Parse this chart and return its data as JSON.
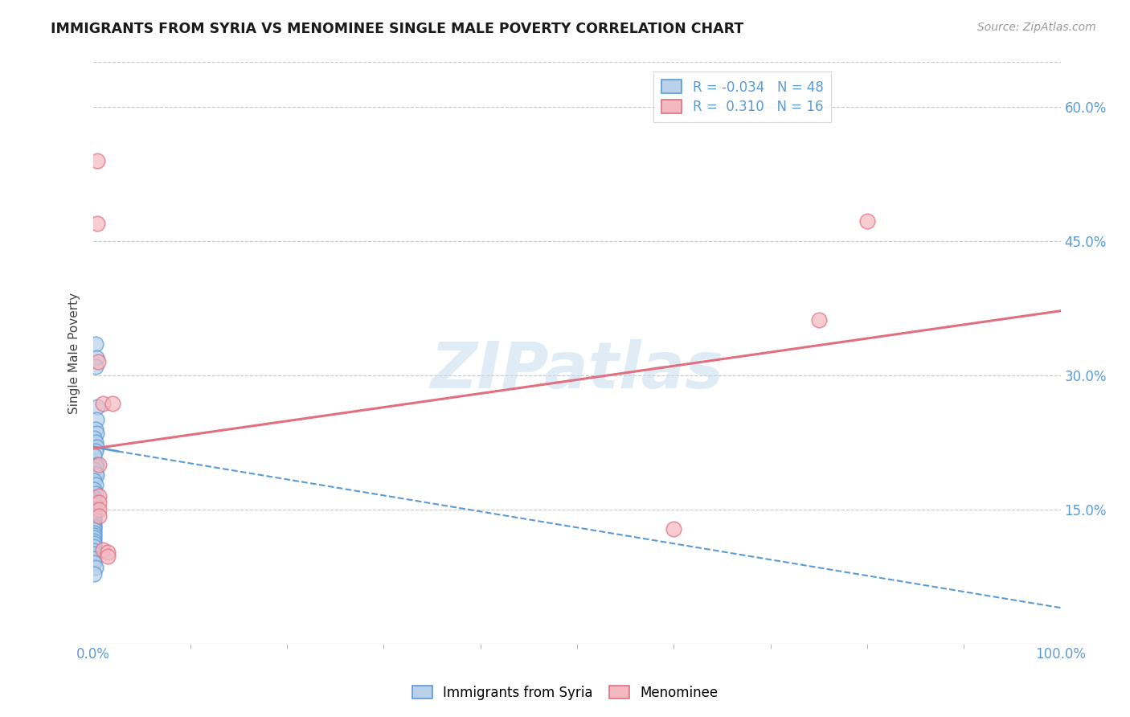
{
  "title": "IMMIGRANTS FROM SYRIA VS MENOMINEE SINGLE MALE POVERTY CORRELATION CHART",
  "source": "Source: ZipAtlas.com",
  "ylabel": "Single Male Poverty",
  "xlim": [
    0,
    1.0
  ],
  "ylim": [
    0,
    0.65
  ],
  "yticks": [
    0.15,
    0.3,
    0.45,
    0.6
  ],
  "ytick_labels": [
    "15.0%",
    "30.0%",
    "45.0%",
    "60.0%"
  ],
  "xtick_left": "0.0%",
  "xtick_right": "100.0%",
  "legend_items": [
    {
      "face_color": "#b8d0ea",
      "edge_color": "#5b9bd5",
      "R": "-0.034",
      "N": "48"
    },
    {
      "face_color": "#f4b8c0",
      "edge_color": "#e07080",
      "R": " 0.310",
      "N": "16"
    }
  ],
  "legend_labels": [
    "Immigrants from Syria",
    "Menominee"
  ],
  "watermark": "ZIPatlas",
  "blue_color": "#5b9bd5",
  "pink_color": "#e07080",
  "axis_color": "#5b9bd5",
  "blue_dots": [
    [
      0.002,
      0.335
    ],
    [
      0.003,
      0.32
    ],
    [
      0.002,
      0.31
    ],
    [
      0.004,
      0.265
    ],
    [
      0.003,
      0.25
    ],
    [
      0.002,
      0.24
    ],
    [
      0.003,
      0.235
    ],
    [
      0.001,
      0.23
    ],
    [
      0.002,
      0.225
    ],
    [
      0.003,
      0.22
    ],
    [
      0.002,
      0.215
    ],
    [
      0.001,
      0.21
    ],
    [
      0.003,
      0.2
    ],
    [
      0.002,
      0.198
    ],
    [
      0.001,
      0.195
    ],
    [
      0.002,
      0.19
    ],
    [
      0.003,
      0.188
    ],
    [
      0.001,
      0.182
    ],
    [
      0.002,
      0.178
    ],
    [
      0.001,
      0.172
    ],
    [
      0.002,
      0.168
    ],
    [
      0.001,
      0.163
    ],
    [
      0.001,
      0.16
    ],
    [
      0.001,
      0.158
    ],
    [
      0.001,
      0.155
    ],
    [
      0.001,
      0.152
    ],
    [
      0.001,
      0.15
    ],
    [
      0.001,
      0.148
    ],
    [
      0.001,
      0.145
    ],
    [
      0.001,
      0.143
    ],
    [
      0.001,
      0.14
    ],
    [
      0.001,
      0.138
    ],
    [
      0.001,
      0.135
    ],
    [
      0.001,
      0.132
    ],
    [
      0.001,
      0.13
    ],
    [
      0.001,
      0.127
    ],
    [
      0.001,
      0.124
    ],
    [
      0.001,
      0.121
    ],
    [
      0.001,
      0.118
    ],
    [
      0.001,
      0.115
    ],
    [
      0.001,
      0.112
    ],
    [
      0.001,
      0.108
    ],
    [
      0.001,
      0.104
    ],
    [
      0.001,
      0.1
    ],
    [
      0.001,
      0.095
    ],
    [
      0.001,
      0.09
    ],
    [
      0.002,
      0.085
    ],
    [
      0.001,
      0.078
    ]
  ],
  "pink_dots": [
    [
      0.004,
      0.54
    ],
    [
      0.004,
      0.47
    ],
    [
      0.005,
      0.315
    ],
    [
      0.01,
      0.268
    ],
    [
      0.02,
      0.268
    ],
    [
      0.006,
      0.2
    ],
    [
      0.006,
      0.165
    ],
    [
      0.006,
      0.158
    ],
    [
      0.006,
      0.15
    ],
    [
      0.006,
      0.143
    ],
    [
      0.01,
      0.105
    ],
    [
      0.015,
      0.102
    ],
    [
      0.015,
      0.098
    ],
    [
      0.6,
      0.128
    ],
    [
      0.75,
      0.362
    ],
    [
      0.8,
      0.472
    ]
  ],
  "blue_line_solid": {
    "x": [
      0.0,
      0.025
    ],
    "y": [
      0.22,
      0.215
    ]
  },
  "blue_line_dashed": {
    "x": [
      0.025,
      1.0
    ],
    "y": [
      0.215,
      0.04
    ]
  },
  "pink_line": {
    "x": [
      0.0,
      1.0
    ],
    "y": [
      0.218,
      0.372
    ]
  }
}
